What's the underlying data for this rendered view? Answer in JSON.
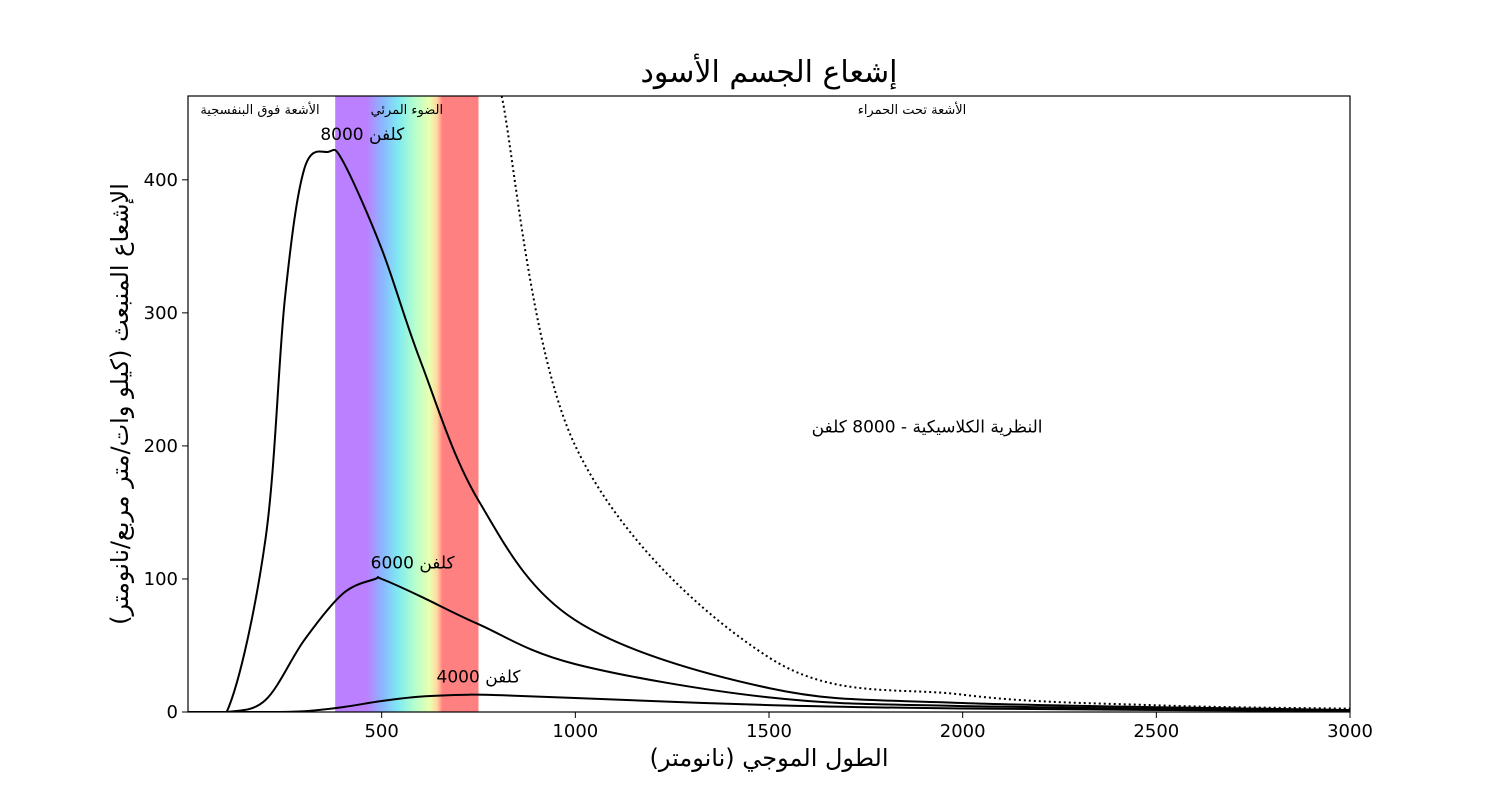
{
  "chart_data": {
    "type": "line",
    "title": "إشعاع الجسم الأسود",
    "xlabel": "الطول الموجي (نانومتر)",
    "ylabel": "الإشعاع المنبعث (كيلو وات/متر مربع/نانومتر)",
    "xlim": [
      0,
      3000
    ],
    "ylim": [
      0,
      463
    ],
    "x_ticks": [
      500,
      1000,
      1500,
      2000,
      2500,
      3000
    ],
    "y_ticks": [
      0,
      100,
      200,
      300,
      400
    ],
    "grid": false,
    "legend": "none",
    "regions": [
      {
        "name": "uv",
        "label": "الأشعة فوق البنفسجية",
        "x_range": [
          0,
          380
        ]
      },
      {
        "name": "visible",
        "label": "الضوء المرئي",
        "x_range": [
          380,
          750
        ]
      },
      {
        "name": "ir",
        "label": "الأشعة تحت الحمراء",
        "x_range": [
          750,
          3000
        ]
      }
    ],
    "series": [
      {
        "name": "8000 كلفن",
        "temperature_K": 8000,
        "style": "solid",
        "color": "#000000",
        "label_at": [
          450,
          430
        ],
        "x": [
          200,
          250,
          300,
          362,
          400,
          500,
          600,
          750,
          1000,
          1500,
          2000,
          3000
        ],
        "y": [
          130,
          310,
          408,
          421,
          414,
          348,
          264,
          159,
          69,
          18,
          6.8,
          1.5
        ]
      },
      {
        "name": "6000 كلفن",
        "temperature_K": 6000,
        "style": "solid",
        "color": "#000000",
        "label_at": [
          580,
          108
        ],
        "x": [
          200,
          300,
          400,
          483,
          500,
          600,
          750,
          1000,
          1500,
          2000,
          3000
        ],
        "y": [
          9,
          54,
          89,
          100,
          100,
          87,
          66,
          36,
          11,
          4.4,
          1.0
        ]
      },
      {
        "name": "4000 كلفن",
        "temperature_K": 4000,
        "style": "solid",
        "color": "#000000",
        "label_at": [
          750,
          22
        ],
        "x": [
          200,
          300,
          400,
          500,
          600,
          725,
          800,
          1000,
          1500,
          2000,
          3000
        ],
        "y": [
          0.01,
          0.6,
          3.7,
          8.3,
          11.6,
          13.0,
          12.7,
          10.5,
          5.2,
          2.6,
          0.7
        ]
      },
      {
        "name": "النظرية الكلاسيكية - 8000 كلفن",
        "temperature_K": 8000,
        "style": "dotted",
        "color": "#000000",
        "label_at": [
          1610,
          210
        ],
        "x": [
          810,
          1000,
          1500,
          2000,
          2500,
          3000
        ],
        "y": [
          463,
          200,
          41,
          13,
          5,
          2.5
        ]
      }
    ],
    "colors": {
      "uv_band": "#bb80ff",
      "red_band": "#ff8080",
      "axes": "#000000",
      "background": "#ffffff"
    }
  }
}
